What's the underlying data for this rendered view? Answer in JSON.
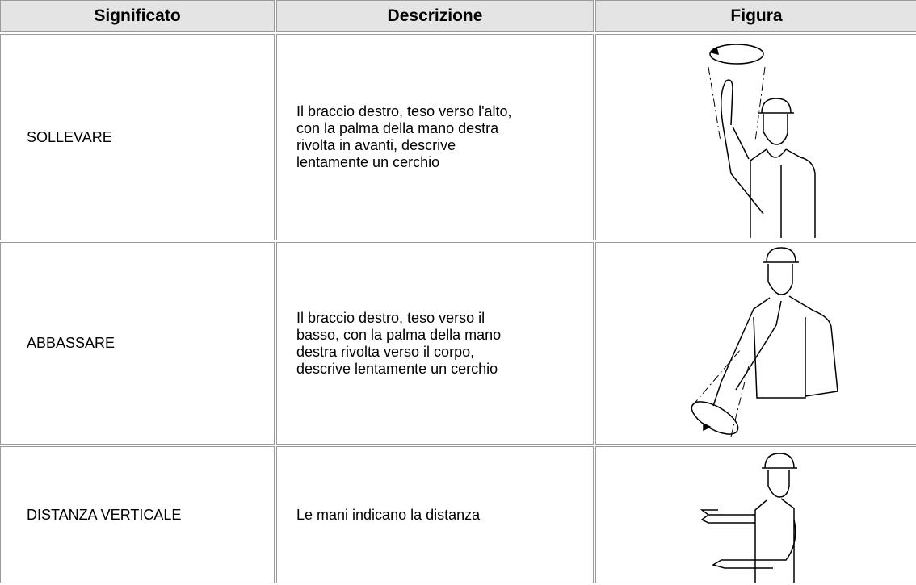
{
  "table": {
    "header": [
      "Significato",
      "Descrizione",
      "Figura"
    ],
    "rows": [
      {
        "meaning": "SOLLEVARE",
        "description": "Il braccio destro, teso verso l'alto, con la palma della mano destra rivolta in avanti, descrive lentamente un cerchio"
      },
      {
        "meaning": "ABBASSARE",
        "description": "Il braccio destro, teso verso il basso, con la palma della mano destra rivolta verso il corpo, descrive lentamente un cerchio"
      },
      {
        "meaning": "DISTANZA VERTICALE",
        "description": "Le mani indicano la distanza"
      }
    ]
  }
}
